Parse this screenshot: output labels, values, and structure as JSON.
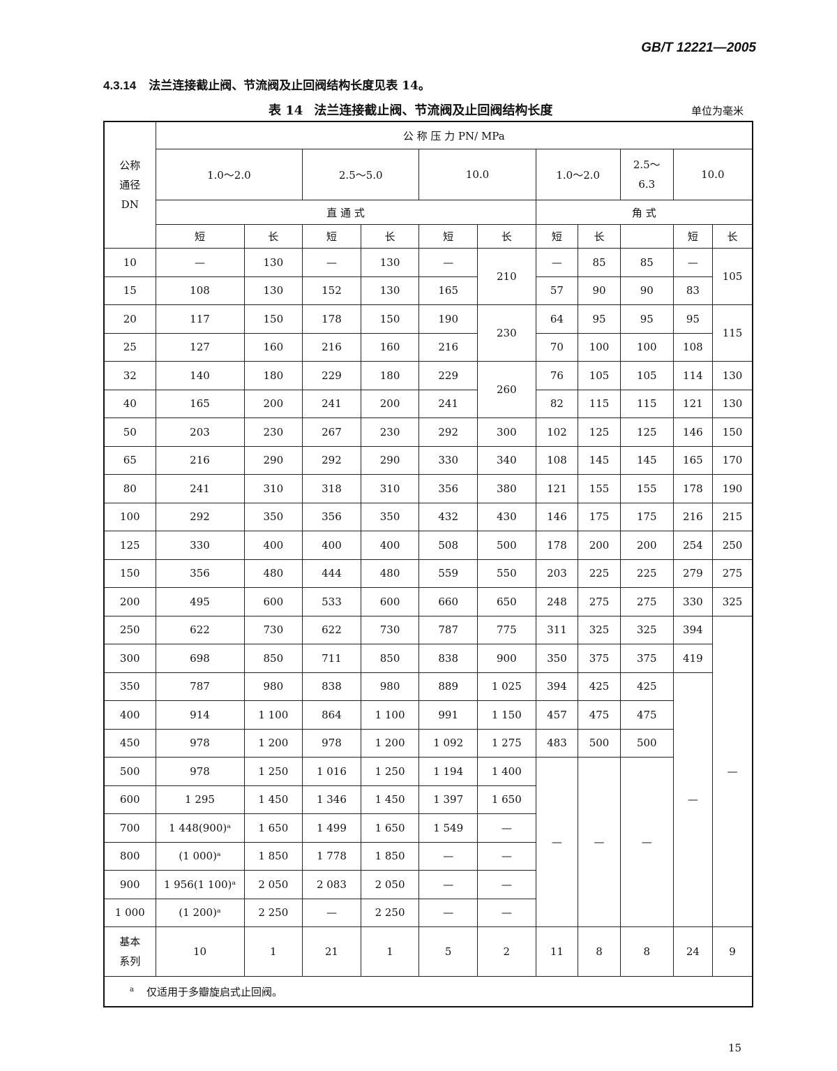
{
  "header": {
    "standard": "GB/T 12221—2005"
  },
  "clause": {
    "number": "4.3.14",
    "text": "法兰连接截止阀、节流阀及止回阀结构长度见表 14。"
  },
  "table": {
    "caption_number": "表 14",
    "caption": "法兰连接截止阀、节流阀及止回阀结构长度",
    "unit": "单位为毫米",
    "dn_header": "公称\n通径\nDN",
    "pressure_header": "公 称 压 力 PN/ MPa",
    "pressure_groups": [
      "1.0～2.0",
      "2.5～5.0",
      "10.0",
      "1.0～2.0",
      "2.5～\n6.3",
      "10.0"
    ],
    "type_straight": "直 通 式",
    "type_angle": "角 式",
    "sub_headers": [
      "短",
      "长",
      "短",
      "长",
      "短",
      "长",
      "短",
      "长",
      "",
      "短",
      "长"
    ],
    "rows": [
      [
        "10",
        "—",
        "130",
        "—",
        "130",
        "—",
        "210",
        "—",
        "85",
        "85",
        "—",
        "105"
      ],
      [
        "15",
        "108",
        "130",
        "152",
        "130",
        "165",
        null,
        "57",
        "90",
        "90",
        "83",
        null
      ],
      [
        "20",
        "117",
        "150",
        "178",
        "150",
        "190",
        "230",
        "64",
        "95",
        "95",
        "95",
        "115"
      ],
      [
        "25",
        "127",
        "160",
        "216",
        "160",
        "216",
        null,
        "70",
        "100",
        "100",
        "108",
        null
      ],
      [
        "32",
        "140",
        "180",
        "229",
        "180",
        "229",
        "260",
        "76",
        "105",
        "105",
        "114",
        "130"
      ],
      [
        "40",
        "165",
        "200",
        "241",
        "200",
        "241",
        null,
        "82",
        "115",
        "115",
        "121",
        "130"
      ],
      [
        "50",
        "203",
        "230",
        "267",
        "230",
        "292",
        "300",
        "102",
        "125",
        "125",
        "146",
        "150"
      ],
      [
        "65",
        "216",
        "290",
        "292",
        "290",
        "330",
        "340",
        "108",
        "145",
        "145",
        "165",
        "170"
      ],
      [
        "80",
        "241",
        "310",
        "318",
        "310",
        "356",
        "380",
        "121",
        "155",
        "155",
        "178",
        "190"
      ],
      [
        "100",
        "292",
        "350",
        "356",
        "350",
        "432",
        "430",
        "146",
        "175",
        "175",
        "216",
        "215"
      ],
      [
        "125",
        "330",
        "400",
        "400",
        "400",
        "508",
        "500",
        "178",
        "200",
        "200",
        "254",
        "250"
      ],
      [
        "150",
        "356",
        "480",
        "444",
        "480",
        "559",
        "550",
        "203",
        "225",
        "225",
        "279",
        "275"
      ],
      [
        "200",
        "495",
        "600",
        "533",
        "600",
        "660",
        "650",
        "248",
        "275",
        "275",
        "330",
        "325"
      ],
      [
        "250",
        "622",
        "730",
        "622",
        "730",
        "787",
        "775",
        "311",
        "325",
        "325",
        "394",
        "—"
      ],
      [
        "300",
        "698",
        "850",
        "711",
        "850",
        "838",
        "900",
        "350",
        "375",
        "375",
        "419",
        null
      ],
      [
        "350",
        "787",
        "980",
        "838",
        "980",
        "889",
        "1 025",
        "394",
        "425",
        "425",
        "—",
        null
      ],
      [
        "400",
        "914",
        "1 100",
        "864",
        "1 100",
        "991",
        "1 150",
        "457",
        "475",
        "475",
        null,
        null
      ],
      [
        "450",
        "978",
        "1 200",
        "978",
        "1 200",
        "1 092",
        "1 275",
        "483",
        "500",
        "500",
        null,
        null
      ],
      [
        "500",
        "978",
        "1 250",
        "1 016",
        "1 250",
        "1 194",
        "1 400",
        "—",
        "—",
        "—",
        null,
        null
      ],
      [
        "600",
        "1 295",
        "1 450",
        "1 346",
        "1 450",
        "1 397",
        "1 650",
        null,
        null,
        null,
        null,
        null
      ],
      [
        "700",
        "1 448(900)ᵃ",
        "1 650",
        "1 499",
        "1 650",
        "1 549",
        "—",
        null,
        null,
        null,
        null,
        null
      ],
      [
        "800",
        "(1 000)ᵃ",
        "1 850",
        "1 778",
        "1 850",
        "—",
        "—",
        null,
        null,
        null,
        null,
        null
      ],
      [
        "900",
        "1 956(1 100)ᵃ",
        "2 050",
        "2 083",
        "2 050",
        "—",
        "—",
        null,
        null,
        null,
        null,
        null
      ],
      [
        "1 000",
        "(1 200)ᵃ",
        "2 250",
        "—",
        "2 250",
        "—",
        "—",
        null,
        null,
        null,
        null,
        null
      ]
    ],
    "basis_label": "基本\n系列",
    "basis": [
      "10",
      "1",
      "21",
      "1",
      "5",
      "2",
      "11",
      "8",
      "8",
      "24",
      "9"
    ],
    "footnote_mark": "a",
    "footnote": "仅适用于多瓣旋启式止回阀。"
  },
  "page_number": "15"
}
